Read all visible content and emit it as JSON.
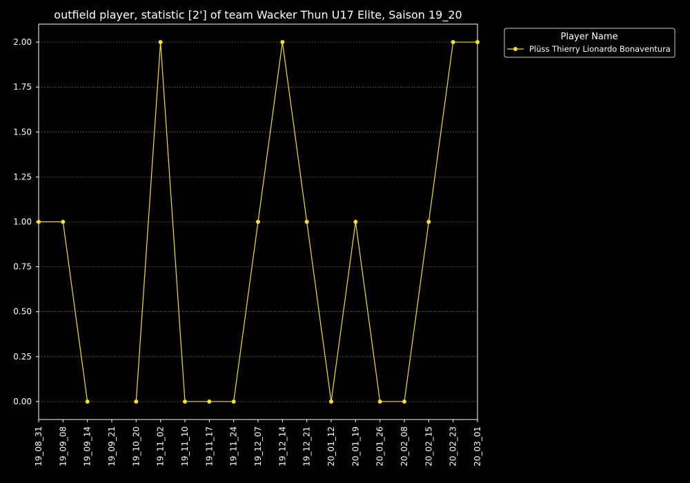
{
  "chart_data": {
    "type": "line",
    "title": "outfield player, statistic [2'] of team Wacker Thun U17 Elite, Saison 19_20",
    "xlabel": "",
    "ylabel": "",
    "categories": [
      "19_08_31",
      "19_09_08",
      "19_09_14",
      "19_09_21",
      "19_10_20",
      "19_11_02",
      "19_11_10",
      "19_11_17",
      "19_11_24",
      "19_12_07",
      "19_12_14",
      "19_12_21",
      "20_01_12",
      "20_01_19",
      "20_01_26",
      "20_02_08",
      "20_02_15",
      "20_02_23",
      "20_03_01"
    ],
    "ylim": [
      -0.1,
      2.1
    ],
    "yticks": [
      0.0,
      0.25,
      0.5,
      0.75,
      1.0,
      1.25,
      1.5,
      1.75,
      2.0
    ],
    "ytick_labels": [
      "0.00",
      "0.25",
      "0.50",
      "0.75",
      "1.00",
      "1.25",
      "1.50",
      "1.75",
      "2.00"
    ],
    "grid": true,
    "legend": {
      "title": "Player Name",
      "placement": "outside-top-right"
    },
    "series": [
      {
        "name": "Plüss Thierry Lionardo Bonaventura",
        "color": "#f5e02a",
        "values": [
          1,
          1,
          0,
          null,
          0,
          2,
          0,
          0,
          0,
          1,
          2,
          1,
          0,
          1,
          0,
          0,
          1,
          2,
          2
        ]
      }
    ]
  },
  "colors": {
    "background": "#000000",
    "axes": "#ffffff",
    "grid": "#7f7f7f"
  }
}
